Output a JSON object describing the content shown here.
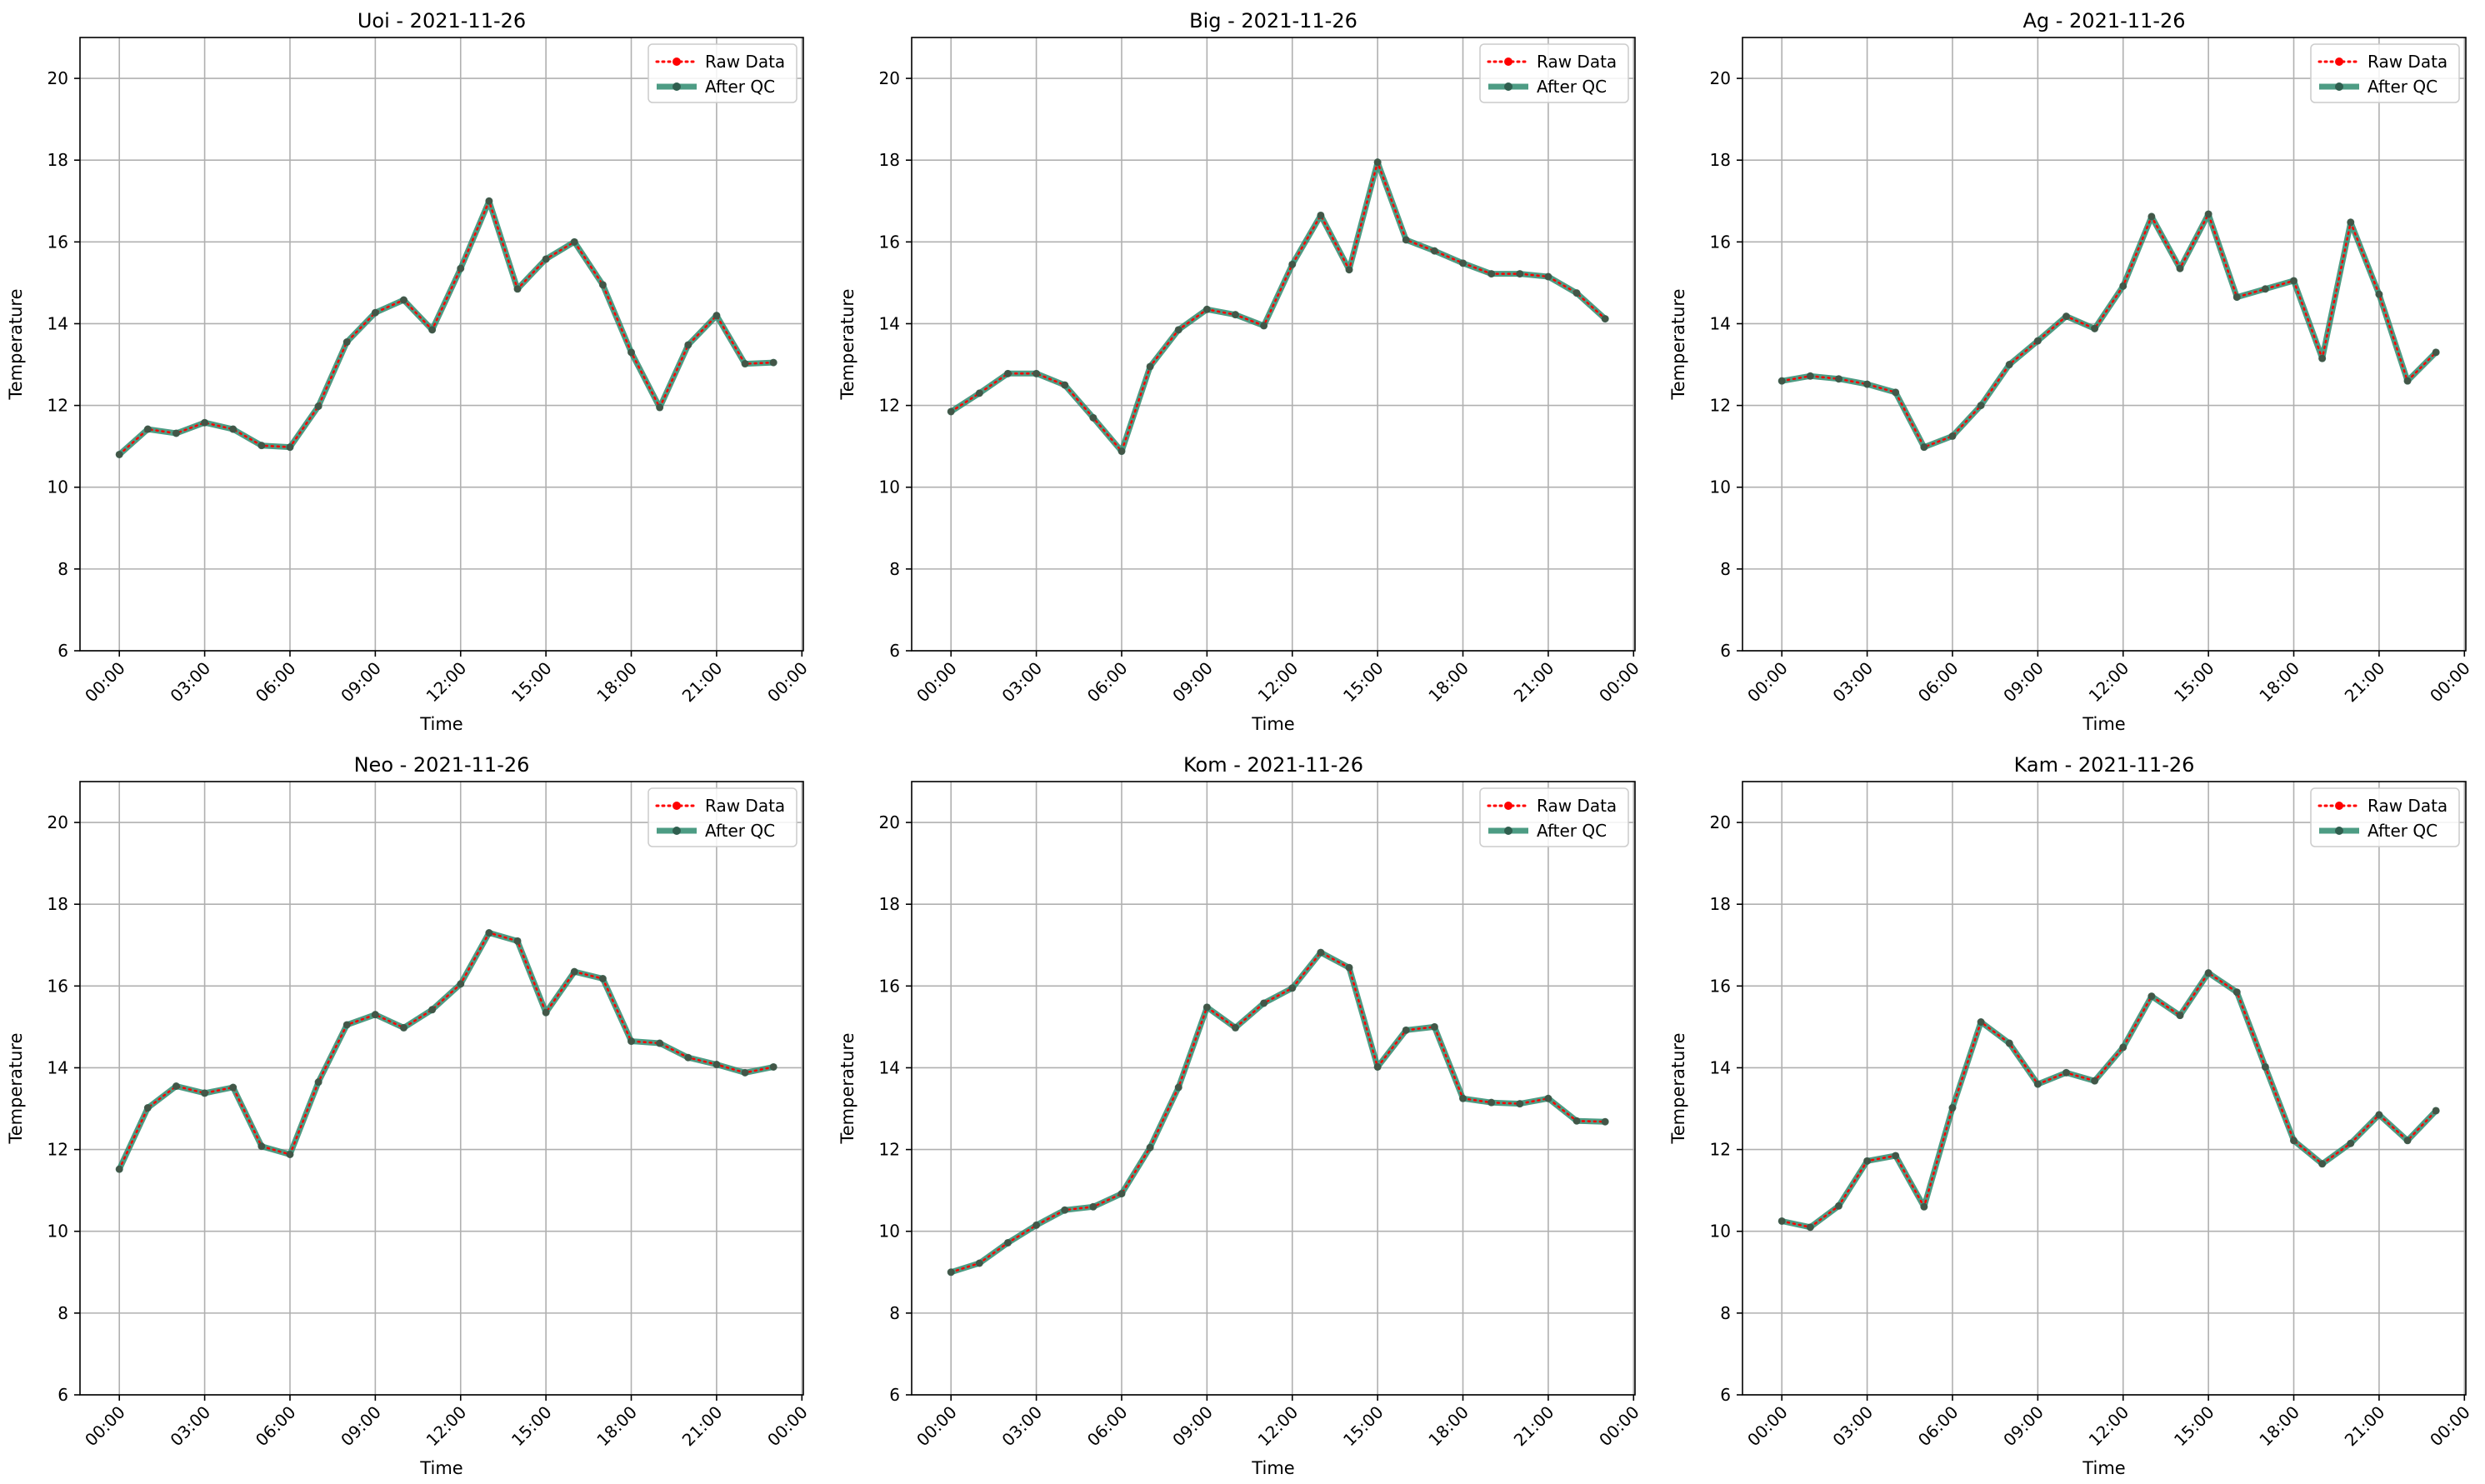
{
  "figure": {
    "legend_raw": "Raw Data",
    "legend_qc": "After QC"
  },
  "colors": {
    "raw": "#ff0000",
    "qc": "#2e8b6e",
    "qc_marker": "#2f5f4f",
    "grid": "#b0b0b0",
    "axis": "#000000"
  },
  "chart_data": [
    {
      "type": "line",
      "title": "Uoi - 2021-11-26",
      "xlabel": "Time",
      "ylabel": "Temperature",
      "ylim": [
        6,
        21
      ],
      "yticks": [
        6,
        8,
        10,
        12,
        14,
        16,
        18,
        20
      ],
      "xticks": [
        "00:00",
        "03:00",
        "06:00",
        "09:00",
        "12:00",
        "15:00",
        "18:00",
        "21:00",
        "00:00"
      ],
      "grid": true,
      "legend": "top-right",
      "x": [
        "00:00",
        "01:00",
        "02:00",
        "03:00",
        "04:00",
        "05:00",
        "06:00",
        "07:00",
        "08:00",
        "09:00",
        "10:00",
        "11:00",
        "12:00",
        "13:00",
        "14:00",
        "15:00",
        "16:00",
        "17:00",
        "18:00",
        "19:00",
        "20:00",
        "21:00",
        "22:00",
        "23:00"
      ],
      "series": [
        {
          "name": "Raw Data",
          "values": [
            10.8,
            11.42,
            11.32,
            11.58,
            11.42,
            11.02,
            10.98,
            11.98,
            13.55,
            14.27,
            14.58,
            13.85,
            15.35,
            17.0,
            14.85,
            15.58,
            16.0,
            14.95,
            13.3,
            11.95,
            13.48,
            14.2,
            13.02,
            13.05
          ]
        },
        {
          "name": "After QC",
          "values": [
            10.8,
            11.42,
            11.32,
            11.58,
            11.42,
            11.02,
            10.98,
            11.98,
            13.55,
            14.27,
            14.58,
            13.85,
            15.35,
            17.0,
            14.85,
            15.58,
            16.0,
            14.95,
            13.3,
            11.95,
            13.48,
            14.2,
            13.02,
            13.05
          ]
        }
      ]
    },
    {
      "type": "line",
      "title": "Big - 2021-11-26",
      "xlabel": "Time",
      "ylabel": "Temperature",
      "ylim": [
        6,
        21
      ],
      "yticks": [
        6,
        8,
        10,
        12,
        14,
        16,
        18,
        20
      ],
      "xticks": [
        "00:00",
        "03:00",
        "06:00",
        "09:00",
        "12:00",
        "15:00",
        "18:00",
        "21:00",
        "00:00"
      ],
      "grid": true,
      "legend": "top-right",
      "x": [
        "00:00",
        "01:00",
        "02:00",
        "03:00",
        "04:00",
        "05:00",
        "06:00",
        "07:00",
        "08:00",
        "09:00",
        "10:00",
        "11:00",
        "12:00",
        "13:00",
        "14:00",
        "15:00",
        "16:00",
        "17:00",
        "18:00",
        "19:00",
        "20:00",
        "21:00",
        "22:00",
        "23:00"
      ],
      "series": [
        {
          "name": "Raw Data",
          "values": [
            11.85,
            12.3,
            12.78,
            12.78,
            12.5,
            11.7,
            10.88,
            12.95,
            13.85,
            14.35,
            14.22,
            13.95,
            15.45,
            16.65,
            15.32,
            17.95,
            16.05,
            15.78,
            15.48,
            15.22,
            15.22,
            15.15,
            14.75,
            14.12
          ]
        },
        {
          "name": "After QC",
          "values": [
            11.85,
            12.3,
            12.78,
            12.78,
            12.5,
            11.7,
            10.88,
            12.95,
            13.85,
            14.35,
            14.22,
            13.95,
            15.45,
            16.65,
            15.32,
            17.95,
            16.05,
            15.78,
            15.48,
            15.22,
            15.22,
            15.15,
            14.75,
            14.12
          ]
        }
      ]
    },
    {
      "type": "line",
      "title": "Ag - 2021-11-26",
      "xlabel": "Time",
      "ylabel": "Temperature",
      "ylim": [
        6,
        21
      ],
      "yticks": [
        6,
        8,
        10,
        12,
        14,
        16,
        18,
        20
      ],
      "xticks": [
        "00:00",
        "03:00",
        "06:00",
        "09:00",
        "12:00",
        "15:00",
        "18:00",
        "21:00",
        "00:00"
      ],
      "grid": true,
      "legend": "top-right",
      "x": [
        "00:00",
        "01:00",
        "02:00",
        "03:00",
        "04:00",
        "05:00",
        "06:00",
        "07:00",
        "08:00",
        "09:00",
        "10:00",
        "11:00",
        "12:00",
        "13:00",
        "14:00",
        "15:00",
        "16:00",
        "17:00",
        "18:00",
        "19:00",
        "20:00",
        "21:00",
        "22:00",
        "23:00"
      ],
      "series": [
        {
          "name": "Raw Data",
          "values": [
            12.6,
            12.72,
            12.65,
            12.52,
            12.32,
            10.98,
            11.25,
            12.0,
            13.0,
            13.58,
            14.18,
            13.88,
            14.92,
            16.62,
            15.35,
            16.68,
            14.65,
            14.85,
            15.05,
            13.15,
            16.48,
            14.72,
            12.6,
            13.3
          ]
        },
        {
          "name": "After QC",
          "values": [
            12.6,
            12.72,
            12.65,
            12.52,
            12.32,
            10.98,
            11.25,
            12.0,
            13.0,
            13.58,
            14.18,
            13.88,
            14.92,
            16.62,
            15.35,
            16.68,
            14.65,
            14.85,
            15.05,
            13.15,
            16.48,
            14.72,
            12.6,
            13.3
          ]
        }
      ]
    },
    {
      "type": "line",
      "title": "Neo - 2021-11-26",
      "xlabel": "Time",
      "ylabel": "Temperature",
      "ylim": [
        6,
        21
      ],
      "yticks": [
        6,
        8,
        10,
        12,
        14,
        16,
        18,
        20
      ],
      "xticks": [
        "00:00",
        "03:00",
        "06:00",
        "09:00",
        "12:00",
        "15:00",
        "18:00",
        "21:00",
        "00:00"
      ],
      "grid": true,
      "legend": "top-right",
      "x": [
        "00:00",
        "01:00",
        "02:00",
        "03:00",
        "04:00",
        "05:00",
        "06:00",
        "07:00",
        "08:00",
        "09:00",
        "10:00",
        "11:00",
        "12:00",
        "13:00",
        "14:00",
        "15:00",
        "16:00",
        "17:00",
        "18:00",
        "19:00",
        "20:00",
        "21:00",
        "22:00",
        "23:00"
      ],
      "series": [
        {
          "name": "Raw Data",
          "values": [
            11.52,
            13.02,
            13.55,
            13.38,
            13.52,
            12.08,
            11.88,
            13.65,
            15.05,
            15.3,
            14.98,
            15.42,
            16.05,
            17.3,
            17.1,
            15.35,
            16.35,
            16.18,
            14.65,
            14.6,
            14.25,
            14.08,
            13.88,
            14.02
          ]
        },
        {
          "name": "After QC",
          "values": [
            11.52,
            13.02,
            13.55,
            13.38,
            13.52,
            12.08,
            11.88,
            13.65,
            15.05,
            15.3,
            14.98,
            15.42,
            16.05,
            17.3,
            17.1,
            15.35,
            16.35,
            16.18,
            14.65,
            14.6,
            14.25,
            14.08,
            13.88,
            14.02
          ]
        }
      ]
    },
    {
      "type": "line",
      "title": "Kom - 2021-11-26",
      "xlabel": "Time",
      "ylabel": "Temperature",
      "ylim": [
        6,
        21
      ],
      "yticks": [
        6,
        8,
        10,
        12,
        14,
        16,
        18,
        20
      ],
      "xticks": [
        "00:00",
        "03:00",
        "06:00",
        "09:00",
        "12:00",
        "15:00",
        "18:00",
        "21:00",
        "00:00"
      ],
      "grid": true,
      "legend": "top-right",
      "x": [
        "00:00",
        "01:00",
        "02:00",
        "03:00",
        "04:00",
        "05:00",
        "06:00",
        "07:00",
        "08:00",
        "09:00",
        "10:00",
        "11:00",
        "12:00",
        "13:00",
        "14:00",
        "15:00",
        "16:00",
        "17:00",
        "18:00",
        "19:00",
        "20:00",
        "21:00",
        "22:00",
        "23:00"
      ],
      "series": [
        {
          "name": "Raw Data",
          "values": [
            9.0,
            9.22,
            9.72,
            10.15,
            10.52,
            10.6,
            10.92,
            12.05,
            13.52,
            15.48,
            14.98,
            15.58,
            15.95,
            16.82,
            16.45,
            14.02,
            14.92,
            15.0,
            13.25,
            13.15,
            13.12,
            13.25,
            12.7,
            12.68
          ]
        },
        {
          "name": "After QC",
          "values": [
            9.0,
            9.22,
            9.72,
            10.15,
            10.52,
            10.6,
            10.92,
            12.05,
            13.52,
            15.48,
            14.98,
            15.58,
            15.95,
            16.82,
            16.45,
            14.02,
            14.92,
            15.0,
            13.25,
            13.15,
            13.12,
            13.25,
            12.7,
            12.68
          ]
        }
      ]
    },
    {
      "type": "line",
      "title": "Kam - 2021-11-26",
      "xlabel": "Time",
      "ylabel": "Temperature",
      "ylim": [
        6,
        21
      ],
      "yticks": [
        6,
        8,
        10,
        12,
        14,
        16,
        18,
        20
      ],
      "xticks": [
        "00:00",
        "03:00",
        "06:00",
        "09:00",
        "12:00",
        "15:00",
        "18:00",
        "21:00",
        "00:00"
      ],
      "grid": true,
      "legend": "top-right",
      "x": [
        "00:00",
        "01:00",
        "02:00",
        "03:00",
        "04:00",
        "05:00",
        "06:00",
        "07:00",
        "08:00",
        "09:00",
        "10:00",
        "11:00",
        "12:00",
        "13:00",
        "14:00",
        "15:00",
        "16:00",
        "17:00",
        "18:00",
        "19:00",
        "20:00",
        "21:00",
        "22:00",
        "23:00"
      ],
      "series": [
        {
          "name": "Raw Data",
          "values": [
            10.25,
            10.1,
            10.62,
            11.72,
            11.85,
            10.6,
            13.02,
            15.12,
            14.6,
            13.6,
            13.88,
            13.68,
            14.5,
            15.75,
            15.28,
            16.32,
            15.85,
            14.02,
            12.22,
            11.65,
            12.15,
            12.85,
            12.22,
            12.95
          ]
        },
        {
          "name": "After QC",
          "values": [
            10.25,
            10.1,
            10.62,
            11.72,
            11.85,
            10.6,
            13.02,
            15.12,
            14.6,
            13.6,
            13.88,
            13.68,
            14.5,
            15.75,
            15.28,
            16.32,
            15.85,
            14.02,
            12.22,
            11.65,
            12.15,
            12.85,
            12.22,
            12.95
          ]
        }
      ]
    }
  ]
}
